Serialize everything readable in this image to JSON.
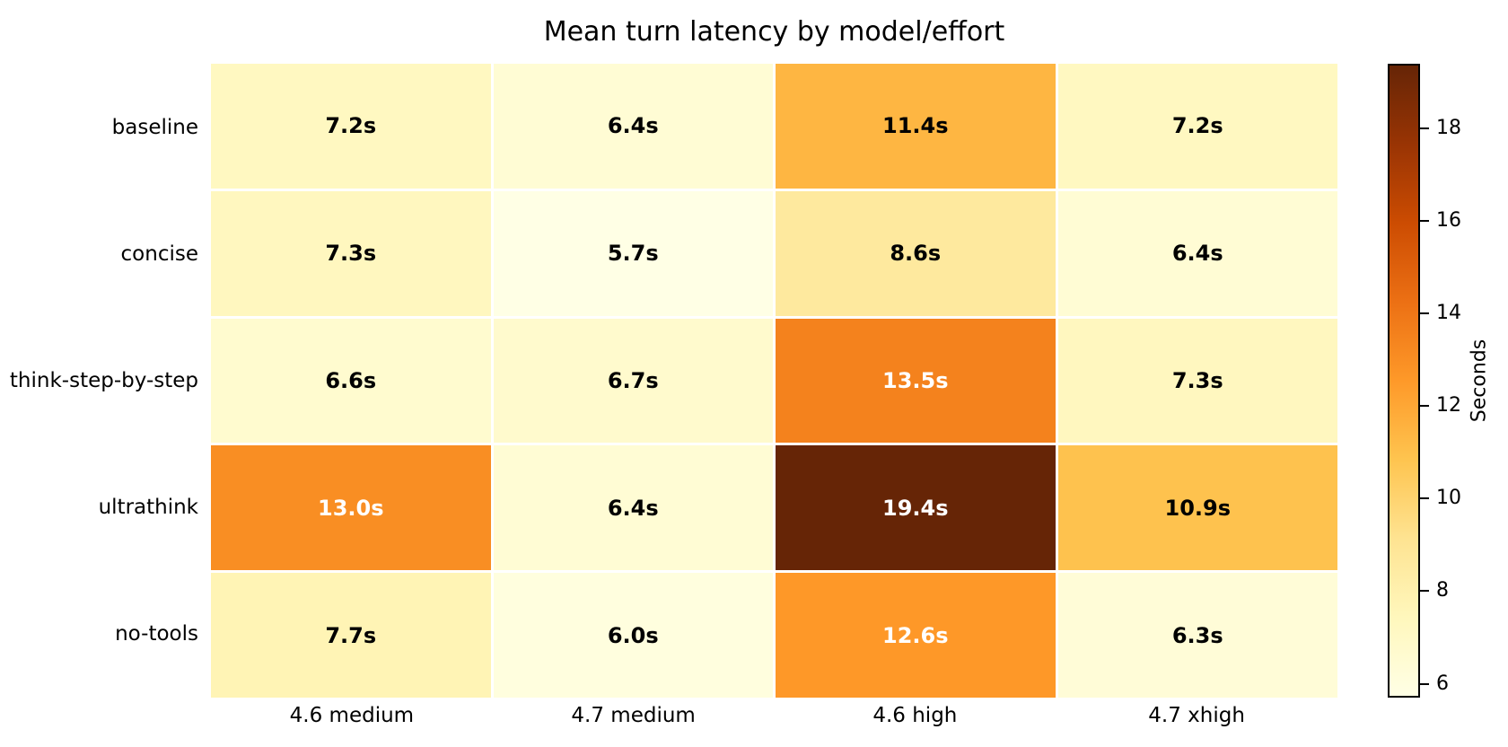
{
  "title": "Mean turn latency by model/effort",
  "heatmap": {
    "row_labels": [
      "baseline",
      "concise",
      "think-step-by-step",
      "ultrathink",
      "no-tools"
    ],
    "col_labels": [
      "4.6 medium",
      "4.7 medium",
      "4.6 high",
      "4.7 xhigh"
    ],
    "cells": [
      [
        {
          "label": "7.2s",
          "bg": "#FFF8C1",
          "fg": "#000000"
        },
        {
          "label": "6.4s",
          "bg": "#FFFCD4",
          "fg": "#000000"
        },
        {
          "label": "11.4s",
          "bg": "#FEB642",
          "fg": "#000000"
        },
        {
          "label": "7.2s",
          "bg": "#FFF8C1",
          "fg": "#000000"
        }
      ],
      [
        {
          "label": "7.3s",
          "bg": "#FFF7BF",
          "fg": "#000000"
        },
        {
          "label": "5.7s",
          "bg": "#FFFFE5",
          "fg": "#000000"
        },
        {
          "label": "8.6s",
          "bg": "#FEE99E",
          "fg": "#000000"
        },
        {
          "label": "6.4s",
          "bg": "#FFFCD4",
          "fg": "#000000"
        }
      ],
      [
        {
          "label": "6.6s",
          "bg": "#FFFBCF",
          "fg": "#000000"
        },
        {
          "label": "6.7s",
          "bg": "#FFFACD",
          "fg": "#000000"
        },
        {
          "label": "13.5s",
          "bg": "#F4821D",
          "fg": "#FFFFFF"
        },
        {
          "label": "7.3s",
          "bg": "#FFF7BF",
          "fg": "#000000"
        }
      ],
      [
        {
          "label": "13.0s",
          "bg": "#F98E23",
          "fg": "#FFFFFF"
        },
        {
          "label": "6.4s",
          "bg": "#FFFCD4",
          "fg": "#000000"
        },
        {
          "label": "19.4s",
          "bg": "#662506",
          "fg": "#FFFFFF"
        },
        {
          "label": "10.9s",
          "bg": "#FEC24E",
          "fg": "#000000"
        }
      ],
      [
        {
          "label": "7.7s",
          "bg": "#FFF4B5",
          "fg": "#000000"
        },
        {
          "label": "6.0s",
          "bg": "#FFFEDE",
          "fg": "#000000"
        },
        {
          "label": "12.6s",
          "bg": "#FE9828",
          "fg": "#FFFFFF"
        },
        {
          "label": "6.3s",
          "bg": "#FFFCD7",
          "fg": "#000000"
        }
      ]
    ]
  },
  "colorbar": {
    "label": "Seconds",
    "vmin": 5.7,
    "vmax": 19.4,
    "ticks": [
      6,
      8,
      10,
      12,
      14,
      16,
      18
    ],
    "gradient_stops_bottom_to_top": [
      "#FFFFE5",
      "#FFF7BC",
      "#FEE391",
      "#FEC44F",
      "#FE9929",
      "#EC7014",
      "#CC4C02",
      "#993404",
      "#662506"
    ]
  },
  "chart_data": {
    "type": "heatmap",
    "title": "Mean turn latency by model/effort",
    "rows": [
      "baseline",
      "concise",
      "think-step-by-step",
      "ultrathink",
      "no-tools"
    ],
    "columns": [
      "4.6 medium",
      "4.7 medium",
      "4.6 high",
      "4.7 xhigh"
    ],
    "values": [
      [
        7.2,
        6.4,
        11.4,
        7.2
      ],
      [
        7.3,
        5.7,
        8.6,
        6.4
      ],
      [
        6.6,
        6.7,
        13.5,
        7.3
      ],
      [
        13.0,
        6.4,
        19.4,
        10.9
      ],
      [
        7.7,
        6.0,
        12.6,
        6.3
      ]
    ],
    "unit": "s",
    "annotation_format": "{value}s",
    "colormap": "YlOrBr",
    "colorbar_label": "Seconds",
    "colorbar_ticks": [
      6,
      8,
      10,
      12,
      14,
      16,
      18
    ],
    "vmin": 5.7,
    "vmax": 19.4,
    "legend_position": "right-colorbar",
    "grid": false
  }
}
